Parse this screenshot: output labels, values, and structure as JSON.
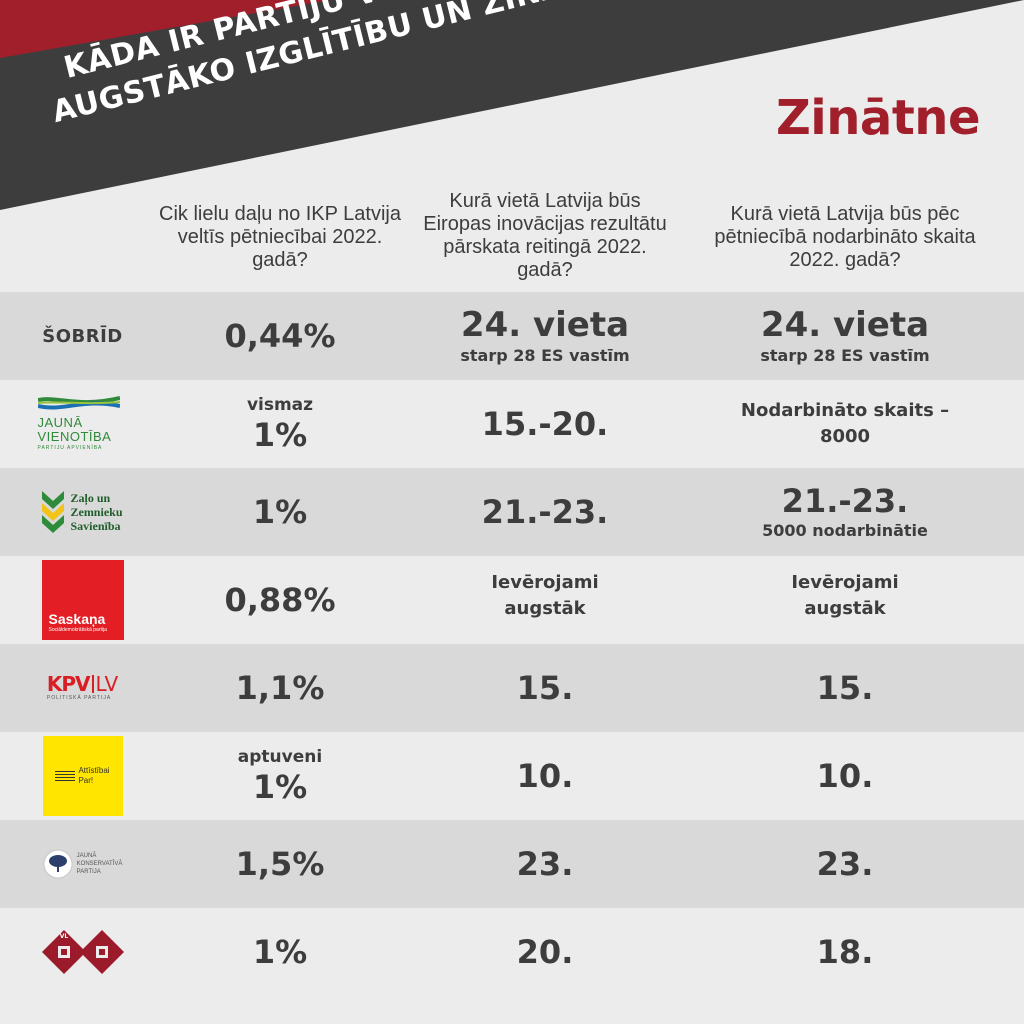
{
  "header": {
    "title_line1": "KĀDA IR PARTIJU VĪZIJA PAR",
    "title_line2": "AUGSTĀKO IZGLĪTĪBU UN ZINĀTNI?",
    "section": "Zinātne",
    "colors": {
      "banner": "#3d3d3d",
      "accent": "#a01f2b"
    }
  },
  "columns": [
    "Cik lielu daļu no IKP Latvija veltīs pētniecībai 2022. gadā?",
    "Kurā vietā Latvija būs Eiropas inovācijas rezultātu pārskata reitingā 2022. gadā?",
    "Kurā vietā Latvija būs pēc pētniecībā nodarbināto skaita 2022. gadā?"
  ],
  "rows": [
    {
      "label": "ŠOBRĪD",
      "c1": "0,44%",
      "c2_main": "24. vieta",
      "c2_sub": "starp 28 ES vastīm",
      "c3_main": "24. vieta",
      "c3_sub": "starp 28 ES vastīm"
    },
    {
      "logo": "jauna-vienotiba-logo",
      "logo_text1": "JAUNĀ",
      "logo_text2": "VIENOTĪBA",
      "logo_text3": "PARTIJU APVIENĪBA",
      "c1_pre": "vismaz",
      "c1": "1%",
      "c2": "15.-20.",
      "c3_line1": "Nodarbināto skaits –",
      "c3_line2": "8000"
    },
    {
      "logo": "zzs-logo",
      "logo_text1": "Zaļo un",
      "logo_text2": "Zemnieku",
      "logo_text3": "Savienība",
      "c1": "1%",
      "c2": "21.-23.",
      "c3_main": "21.-23.",
      "c3_sub": "5000 nodarbinātie"
    },
    {
      "logo": "saskana-logo",
      "logo_text1": "Saskaņa",
      "logo_text2": "Sociāldemokrātiskā partija",
      "c1": "0,88%",
      "c2_line1": "Ievērojami",
      "c2_line2": "augstāk",
      "c3_line1": "Ievērojami",
      "c3_line2": "augstāk"
    },
    {
      "logo": "kpv-lv-logo",
      "logo_text1": "KPV",
      "logo_text2": "LV",
      "logo_text3": "POLITISKĀ PARTIJA",
      "c1": "1,1%",
      "c2": "15.",
      "c3": "15."
    },
    {
      "logo": "attistibai-par-logo",
      "logo_text1": "Attīstībai",
      "logo_text2": "Par!",
      "c1_pre": "aptuveni",
      "c1": "1%",
      "c2": "10.",
      "c3": "10."
    },
    {
      "logo": "jkp-logo",
      "logo_text1": "JAUNĀ",
      "logo_text2": "KONSERVATĪVĀ",
      "logo_text3": "PARTIJA",
      "c1": "1,5%",
      "c2": "23.",
      "c3": "23."
    },
    {
      "logo": "nacionala-apvieniba-logo",
      "logo_text1": "VL",
      "c1": "1%",
      "c2": "20.",
      "c3": "18."
    }
  ]
}
